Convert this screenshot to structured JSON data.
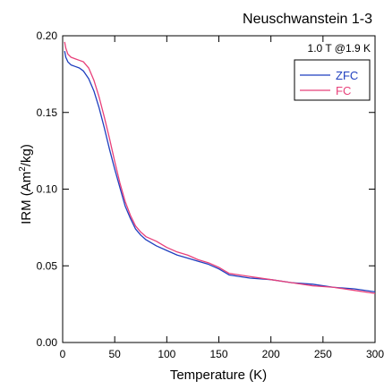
{
  "chart_data": {
    "type": "line",
    "title": "Neuschwanstein 1-3",
    "annotation": "1.0 T @1.9 K",
    "xlabel": "Temperature (K)",
    "ylabel_main": "IRM (Am",
    "ylabel_sup": "2",
    "ylabel_tail": "/kg)",
    "xlim": [
      0,
      300
    ],
    "ylim": [
      0,
      0.2
    ],
    "xticks": [
      0,
      50,
      100,
      150,
      200,
      250,
      300
    ],
    "yticks": [
      0,
      0.05,
      0.1,
      0.15,
      0.2
    ],
    "xtick_labels": [
      "0",
      "50",
      "100",
      "150",
      "200",
      "250",
      "300"
    ],
    "ytick_labels": [
      "0.00",
      "0.05",
      "0.10",
      "0.15",
      "0.20"
    ],
    "grid": false,
    "legend_position": "top-right",
    "series": [
      {
        "name": "ZFC",
        "color": "#1f3fbf",
        "x": [
          1.9,
          3,
          5,
          8,
          12,
          16,
          20,
          25,
          30,
          35,
          40,
          45,
          50,
          55,
          60,
          65,
          70,
          75,
          80,
          90,
          100,
          110,
          120,
          130,
          140,
          150,
          155,
          160,
          170,
          180,
          200,
          220,
          240,
          260,
          280,
          300
        ],
        "y": [
          0.19,
          0.186,
          0.183,
          0.181,
          0.18,
          0.179,
          0.177,
          0.172,
          0.164,
          0.153,
          0.14,
          0.126,
          0.113,
          0.101,
          0.089,
          0.081,
          0.074,
          0.07,
          0.067,
          0.063,
          0.06,
          0.057,
          0.055,
          0.053,
          0.051,
          0.048,
          0.046,
          0.044,
          0.043,
          0.042,
          0.041,
          0.039,
          0.038,
          0.036,
          0.035,
          0.033
        ]
      },
      {
        "name": "FC",
        "color": "#e8407a",
        "x": [
          1.9,
          3,
          5,
          8,
          12,
          16,
          20,
          25,
          30,
          35,
          40,
          45,
          50,
          55,
          60,
          65,
          70,
          75,
          80,
          90,
          100,
          110,
          120,
          130,
          140,
          150,
          155,
          160,
          170,
          180,
          200,
          220,
          240,
          260,
          280,
          300
        ],
        "y": [
          0.196,
          0.192,
          0.188,
          0.186,
          0.185,
          0.184,
          0.183,
          0.179,
          0.171,
          0.16,
          0.147,
          0.133,
          0.118,
          0.104,
          0.092,
          0.083,
          0.076,
          0.072,
          0.069,
          0.066,
          0.062,
          0.059,
          0.057,
          0.054,
          0.052,
          0.049,
          0.047,
          0.045,
          0.044,
          0.043,
          0.041,
          0.039,
          0.037,
          0.036,
          0.034,
          0.032
        ]
      }
    ]
  }
}
